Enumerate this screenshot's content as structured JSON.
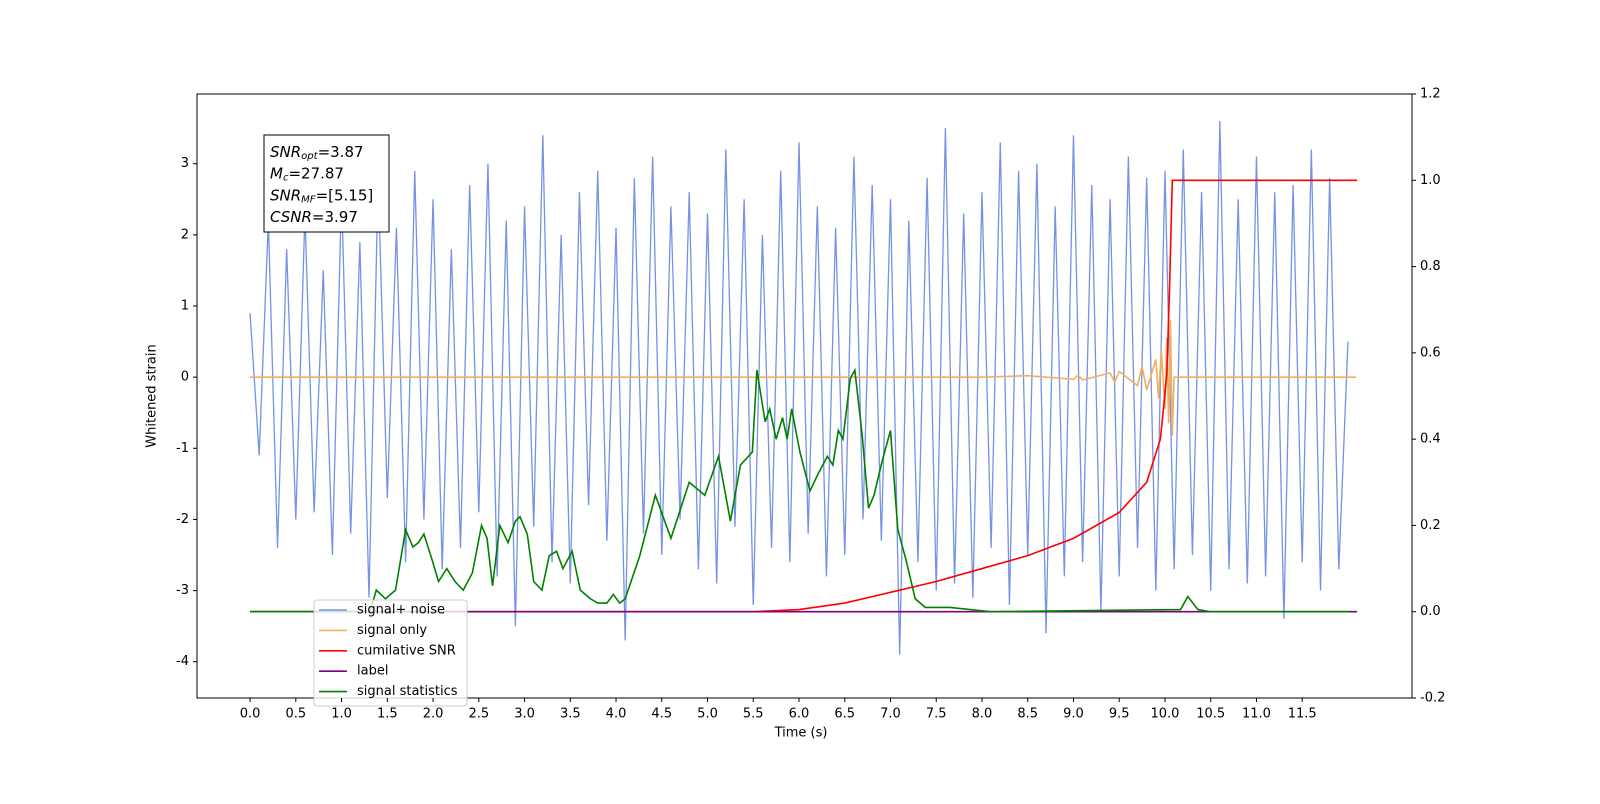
{
  "chart_data": {
    "type": "line",
    "ylabel": "Whitened strain",
    "xlabel": "Time (s)",
    "xlim": [
      -0.58,
      12.7
    ],
    "ylim": [
      -4.51,
      3.98
    ],
    "y2lim": [
      -0.2,
      1.2
    ],
    "xticks": [
      {
        "value": 0,
        "label": "0.0"
      },
      0.5,
      {
        "value": 1,
        "label": "1.0"
      },
      1.5,
      {
        "value": 2,
        "label": "2.0"
      },
      2.5,
      {
        "value": 3,
        "label": "3.0"
      },
      3.5,
      {
        "value": 4,
        "label": "4.0"
      },
      4.5,
      {
        "value": 5,
        "label": "5.0"
      },
      5.5,
      {
        "value": 6,
        "label": "6.0"
      },
      6.5,
      {
        "value": 7,
        "label": "7.0"
      },
      7.5,
      {
        "value": 8,
        "label": "8.0"
      },
      8.5,
      {
        "value": 9,
        "label": "9.0"
      },
      9.5,
      {
        "value": 10,
        "label": "10.0"
      },
      10.5,
      {
        "value": 11,
        "label": "11.0"
      },
      11.5
    ],
    "yticks": [
      -4,
      -3,
      -2,
      -1,
      0,
      1,
      2,
      3
    ],
    "y2ticks": [
      -0.2,
      {
        "value": 0,
        "label": "0.0"
      },
      0.2,
      0.4,
      0.6,
      0.8,
      {
        "value": 1,
        "label": "1.0"
      },
      1.2
    ],
    "annotation": [
      {
        "main": "SNR",
        "sub": "opt",
        "rest": "=3.87"
      },
      {
        "main": "M",
        "sub": "c",
        "rest": "=27.87"
      },
      {
        "main": "SNR",
        "sub": "MF",
        "rest": "=[5.15]"
      },
      {
        "main": "CSNR",
        "sub": "",
        "rest": "=3.97"
      }
    ],
    "series": [
      {
        "name": "signal+ noise",
        "color": "#7592e6",
        "x": [
          0,
          0.1,
          0.2,
          0.3,
          0.4,
          0.5,
          0.6,
          0.7,
          0.8,
          0.9,
          1,
          1.1,
          1.2,
          1.3,
          1.4,
          1.5,
          1.6,
          1.7,
          1.8,
          1.9,
          2,
          2.1,
          2.2,
          2.3,
          2.4,
          2.5,
          2.6,
          2.7,
          2.8,
          2.9,
          3,
          3.1,
          3.2,
          3.3,
          3.4,
          3.5,
          3.6,
          3.7,
          3.8,
          3.9,
          4,
          4.1,
          4.2,
          4.3,
          4.4,
          4.5,
          4.6,
          4.7,
          4.8,
          4.9,
          5,
          5.1,
          5.2,
          5.3,
          5.4,
          5.5,
          5.6,
          5.7,
          5.8,
          5.9,
          6,
          6.1,
          6.2,
          6.3,
          6.4,
          6.5,
          6.6,
          6.7,
          6.8,
          6.9,
          7,
          7.1,
          7.2,
          7.3,
          7.4,
          7.5,
          7.6,
          7.7,
          7.8,
          7.9,
          8,
          8.1,
          8.2,
          8.3,
          8.4,
          8.5,
          8.6,
          8.7,
          8.8,
          8.9,
          9,
          9.1,
          9.2,
          9.3,
          9.4,
          9.5,
          9.6,
          9.7,
          9.8,
          9.9,
          10,
          10.1,
          10.2,
          10.3,
          10.4,
          10.5,
          10.6,
          10.7,
          10.8,
          10.9,
          11,
          11.1,
          11.2,
          11.3,
          11.4,
          11.5,
          11.6,
          11.7,
          11.8,
          11.9,
          12.0
        ],
        "values": [
          0.9,
          -1.1,
          2.2,
          -2.4,
          1.8,
          -2.0,
          2.3,
          -1.9,
          1.5,
          -2.5,
          2.6,
          -2.2,
          1.9,
          -3.1,
          2.8,
          -1.7,
          2.1,
          -2.6,
          2.9,
          -2.0,
          2.5,
          -2.7,
          1.8,
          -2.4,
          2.7,
          -1.9,
          3.0,
          -2.8,
          2.2,
          -3.5,
          2.4,
          -2.1,
          3.4,
          -2.6,
          2.0,
          -2.9,
          2.6,
          -1.8,
          2.9,
          -2.3,
          2.1,
          -3.7,
          2.8,
          -2.2,
          3.1,
          -2.5,
          2.4,
          -2.0,
          2.6,
          -2.7,
          2.3,
          -2.9,
          3.2,
          -2.1,
          2.5,
          -3.2,
          2.0,
          -2.4,
          2.9,
          -2.6,
          3.3,
          -2.2,
          2.4,
          -2.8,
          2.1,
          -2.5,
          3.1,
          -2.0,
          2.7,
          -2.3,
          2.5,
          -3.9,
          2.2,
          -2.6,
          2.8,
          -3.0,
          3.5,
          -2.9,
          2.3,
          -3.1,
          2.6,
          -2.4,
          3.3,
          -3.2,
          2.9,
          -2.5,
          3.0,
          -3.6,
          2.4,
          -2.8,
          3.4,
          -2.6,
          2.7,
          -3.3,
          2.5,
          -2.8,
          3.1,
          -2.4,
          2.8,
          -3.0,
          2.9,
          -2.7,
          3.2,
          -2.5,
          2.6,
          -3.0,
          3.6,
          -2.7,
          2.5,
          -2.9,
          3.1,
          -2.8,
          2.6,
          -3.4,
          2.7,
          -2.6,
          3.2,
          -3.0,
          2.8,
          -2.7,
          0.5
        ]
      },
      {
        "name": "signal only",
        "color": "#f0b060",
        "x": [
          0,
          7,
          8,
          8.5,
          9.0,
          9.05,
          9.1,
          9.4,
          9.45,
          9.5,
          9.7,
          9.75,
          9.8,
          9.9,
          9.93,
          9.96,
          10.0,
          10.02,
          10.04,
          10.06,
          10.08,
          10.1,
          12.09
        ],
        "values": [
          0,
          0,
          0,
          0.02,
          -0.03,
          0.03,
          -0.04,
          0.06,
          -0.07,
          0.08,
          -0.12,
          0.15,
          -0.18,
          0.25,
          -0.3,
          0.38,
          -0.45,
          0.55,
          -0.65,
          0.8,
          -0.82,
          0,
          0
        ]
      },
      {
        "name": "cumilative SNR",
        "color": "#ff0000",
        "axis": "y2",
        "x": [
          0,
          5.5,
          6.0,
          6.5,
          7.0,
          7.5,
          8.0,
          8.5,
          9.0,
          9.5,
          9.8,
          9.95,
          10.02,
          10.05,
          10.08,
          12.1
        ],
        "values": [
          0,
          0,
          0.005,
          0.02,
          0.045,
          0.07,
          0.1,
          0.13,
          0.17,
          0.23,
          0.3,
          0.4,
          0.55,
          0.75,
          1.0,
          1.0
        ]
      },
      {
        "name": "label",
        "color": "#800080",
        "axis": "y2",
        "x": [
          0,
          12.1
        ],
        "values": [
          0,
          0
        ]
      },
      {
        "name": "signal statistics",
        "color": "#008000",
        "axis": "y2",
        "x": [
          0,
          1.31,
          1.38,
          1.48,
          1.59,
          1.7,
          1.78,
          1.84,
          1.9,
          1.99,
          2.06,
          2.15,
          2.24,
          2.33,
          2.43,
          2.53,
          2.59,
          2.65,
          2.73,
          2.82,
          2.9,
          2.95,
          3.03,
          3.1,
          3.19,
          3.27,
          3.35,
          3.42,
          3.52,
          3.61,
          3.72,
          3.8,
          3.9,
          3.97,
          4.04,
          4.1,
          4.26,
          4.43,
          4.6,
          4.8,
          4.97,
          5.12,
          5.25,
          5.36,
          5.49,
          5.54,
          5.63,
          5.68,
          5.75,
          5.82,
          5.87,
          5.92,
          6.01,
          6.12,
          6.21,
          6.31,
          6.37,
          6.43,
          6.48,
          6.56,
          6.61,
          6.69,
          6.76,
          6.82,
          6.91,
          7.0,
          7.08,
          7.17,
          7.27,
          7.38,
          7.65,
          8.09,
          10.17,
          10.25,
          10.36,
          10.49,
          12.02
        ],
        "values": [
          0,
          0,
          0.05,
          0.03,
          0.05,
          0.19,
          0.15,
          0.16,
          0.18,
          0.12,
          0.07,
          0.1,
          0.07,
          0.05,
          0.09,
          0.2,
          0.17,
          0.06,
          0.2,
          0.16,
          0.21,
          0.22,
          0.18,
          0.07,
          0.05,
          0.13,
          0.14,
          0.1,
          0.14,
          0.05,
          0.03,
          0.02,
          0.02,
          0.04,
          0.02,
          0.03,
          0.13,
          0.27,
          0.17,
          0.3,
          0.27,
          0.36,
          0.21,
          0.34,
          0.37,
          0.56,
          0.44,
          0.47,
          0.4,
          0.45,
          0.4,
          0.47,
          0.37,
          0.28,
          0.32,
          0.36,
          0.34,
          0.42,
          0.4,
          0.54,
          0.56,
          0.41,
          0.24,
          0.27,
          0.35,
          0.42,
          0.19,
          0.12,
          0.03,
          0.01,
          0.01,
          0,
          0.005,
          0.035,
          0.005,
          0,
          0
        ]
      }
    ]
  }
}
